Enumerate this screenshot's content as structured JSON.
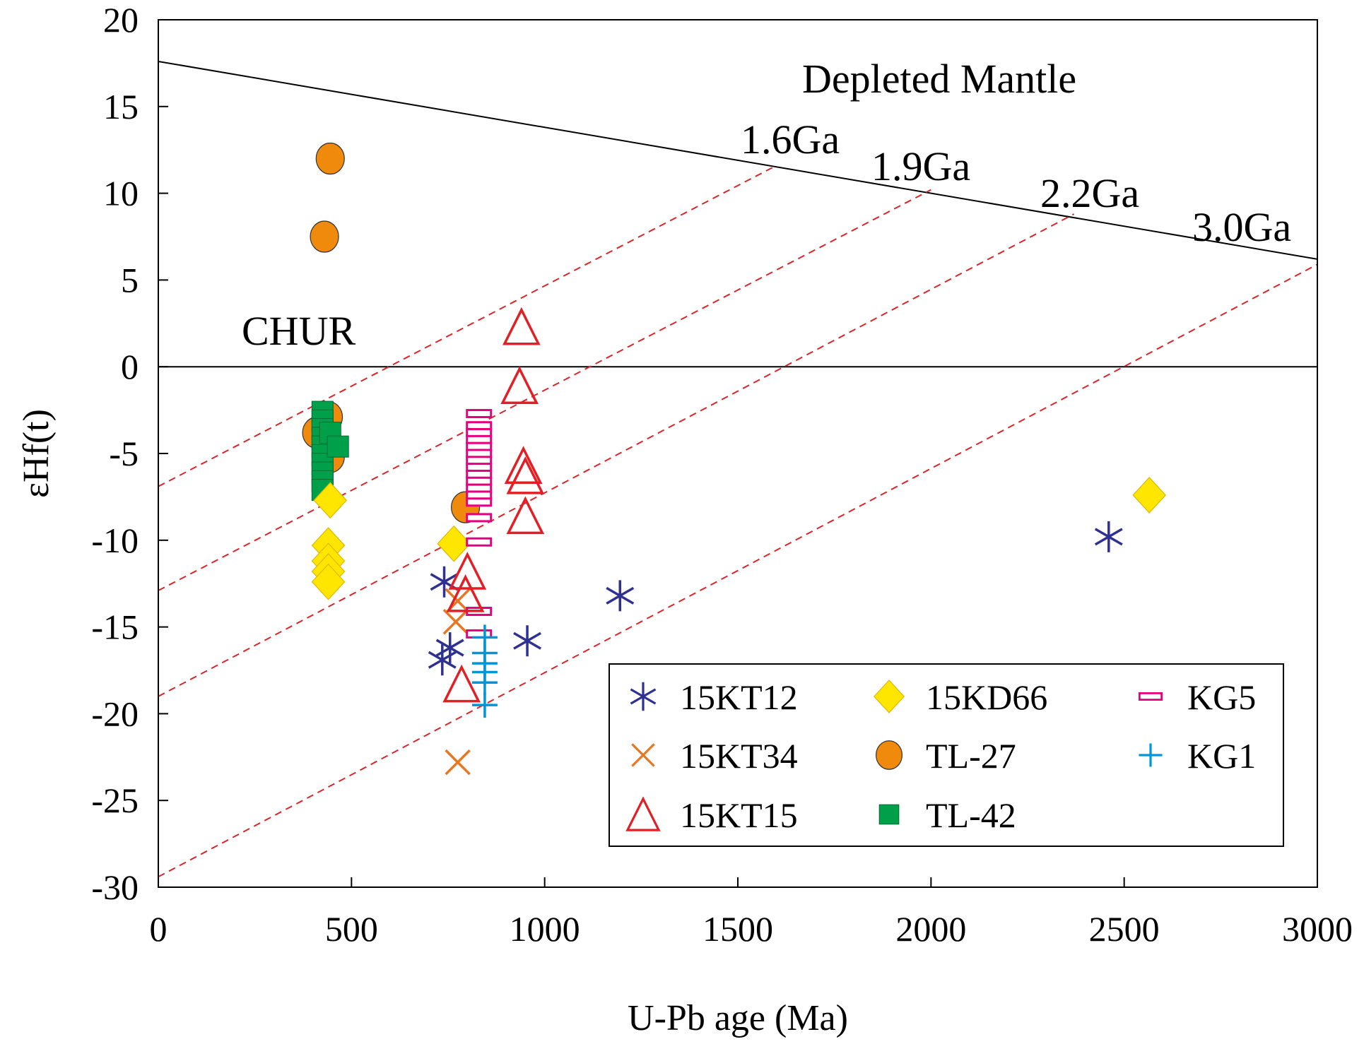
{
  "chart_data": {
    "type": "scatter",
    "xlabel": "U-Pb age (Ma)",
    "ylabel": "εHf(t)",
    "xlim": [
      0,
      3000
    ],
    "ylim": [
      -30,
      20
    ],
    "xticks": [
      0,
      500,
      1000,
      1500,
      2000,
      2500,
      3000
    ],
    "yticks": [
      20,
      15,
      10,
      5,
      0,
      -5,
      -10,
      -15,
      -20,
      -25,
      -30
    ],
    "reference_lines": {
      "depleted_mantle": {
        "label": "Depleted Mantle",
        "x": [
          0,
          3000
        ],
        "y": [
          17.6,
          6.2
        ]
      },
      "chur": {
        "label": "CHUR",
        "x": [
          0,
          3000
        ],
        "y": [
          0,
          0
        ]
      },
      "crustal_evolution": [
        {
          "label": "1.6Ga",
          "x": [
            0,
            1600
          ],
          "y": [
            -6.9,
            11.6
          ]
        },
        {
          "label": "1.9Ga",
          "x": [
            0,
            2000
          ],
          "y": [
            -12.9,
            10.2
          ]
        },
        {
          "label": "2.2Ga",
          "x": [
            0,
            2370
          ],
          "y": [
            -19.0,
            8.8
          ]
        },
        {
          "label": "3.0Ga",
          "x": [
            0,
            3000
          ],
          "y": [
            -29.4,
            5.9
          ]
        }
      ]
    },
    "series": [
      {
        "name": "15KT12",
        "marker": "asterisk",
        "color": "#2e3192",
        "points": [
          [
            740,
            -12.4
          ],
          [
            755,
            -16.2
          ],
          [
            735,
            -16.9
          ],
          [
            1195,
            -13.2
          ],
          [
            955,
            -15.8
          ],
          [
            2460,
            -9.8
          ]
        ]
      },
      {
        "name": "15KT34",
        "marker": "x",
        "color": "#e87722",
        "points": [
          [
            775,
            -13.5
          ],
          [
            770,
            -14.7
          ],
          [
            775,
            -22.8
          ]
        ]
      },
      {
        "name": "15KT15",
        "marker": "triangle",
        "color": "#e31e24",
        "points": [
          [
            940,
            2.3
          ],
          [
            935,
            -1.1
          ],
          [
            945,
            -5.7
          ],
          [
            950,
            -6.3
          ],
          [
            950,
            -8.6
          ],
          [
            800,
            -11.8
          ],
          [
            795,
            -13.1
          ],
          [
            785,
            -18.3
          ]
        ]
      },
      {
        "name": "15KD66",
        "marker": "diamond",
        "color": "#ffe600",
        "points": [
          [
            445,
            -7.7
          ],
          [
            440,
            -10.3
          ],
          [
            440,
            -11.2
          ],
          [
            440,
            -11.8
          ],
          [
            440,
            -12.4
          ],
          [
            765,
            -10.2
          ],
          [
            2565,
            -7.4
          ]
        ]
      },
      {
        "name": "TL-27",
        "marker": "circle",
        "color": "#f08a0c",
        "points": [
          [
            445,
            12.0
          ],
          [
            430,
            7.5
          ],
          [
            410,
            -3.8
          ],
          [
            440,
            -2.9
          ],
          [
            445,
            -5.2
          ],
          [
            795,
            -8.1
          ]
        ]
      },
      {
        "name": "TL-42",
        "marker": "square",
        "color": "#00a04b",
        "points": [
          [
            425,
            -2.6
          ],
          [
            425,
            -3.1
          ],
          [
            425,
            -3.6
          ],
          [
            425,
            -4.1
          ],
          [
            425,
            -4.6
          ],
          [
            425,
            -5.1
          ],
          [
            425,
            -5.6
          ],
          [
            425,
            -6.1
          ],
          [
            425,
            -6.6
          ],
          [
            425,
            -7.1
          ],
          [
            445,
            -3.8
          ],
          [
            465,
            -4.6
          ]
        ]
      },
      {
        "name": "KG5",
        "marker": "rect",
        "color": "#e6007e",
        "points": [
          [
            830,
            -2.7
          ],
          [
            830,
            -3.4
          ],
          [
            830,
            -3.8
          ],
          [
            830,
            -4.2
          ],
          [
            830,
            -4.6
          ],
          [
            830,
            -5.0
          ],
          [
            830,
            -5.4
          ],
          [
            830,
            -5.8
          ],
          [
            830,
            -6.2
          ],
          [
            830,
            -6.6
          ],
          [
            830,
            -7.0
          ],
          [
            830,
            -7.4
          ],
          [
            830,
            -7.8
          ],
          [
            830,
            -8.7
          ],
          [
            830,
            -10.1
          ],
          [
            830,
            -14.1
          ],
          [
            830,
            -15.4
          ]
        ]
      },
      {
        "name": "KG1",
        "marker": "plus",
        "color": "#0096d6",
        "points": [
          [
            845,
            -15.6
          ],
          [
            845,
            -16.5
          ],
          [
            845,
            -17.1
          ],
          [
            845,
            -17.6
          ],
          [
            845,
            -18.2
          ],
          [
            845,
            -19.5
          ]
        ]
      }
    ]
  }
}
